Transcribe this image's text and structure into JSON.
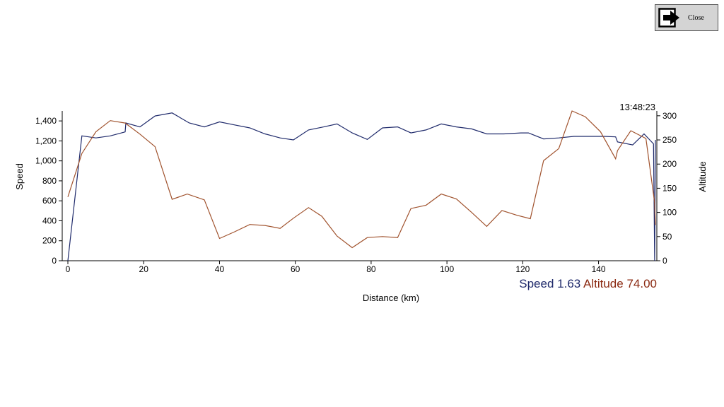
{
  "close_button": {
    "label": "Close",
    "icon": "exit-arrow-icon"
  },
  "timestamp": "13:48:23",
  "readout": {
    "speed_label": "Speed",
    "speed_value": "1.63",
    "speed_color": "#1f2a6b",
    "altitude_label": "Altitude",
    "altitude_value": "74.00",
    "altitude_color": "#8b2a12"
  },
  "chart_data": {
    "type": "line",
    "xlabel": "Distance (km)",
    "ylabel": "Speed",
    "y2label": "Altitude",
    "xlim": [
      0,
      155
    ],
    "ylim": [
      0,
      1500
    ],
    "y2lim": [
      0,
      310
    ],
    "x_ticks": [
      0,
      20,
      40,
      60,
      80,
      100,
      120,
      140
    ],
    "y_ticks": [
      0,
      200,
      400,
      600,
      800,
      1000,
      1200,
      1400
    ],
    "y_tick_labels": [
      "0",
      "200",
      "400",
      "600",
      "800",
      "1,000",
      "1,200",
      "1,400"
    ],
    "y2_ticks": [
      0,
      50,
      100,
      150,
      200,
      250,
      300
    ],
    "series": [
      {
        "name": "Speed",
        "axis": "left",
        "color": "#1f2a6b",
        "x": [
          0,
          3.7,
          7.4,
          11.2,
          15.1,
          15.3,
          19,
          23,
          27.5,
          32,
          36,
          40,
          44,
          48,
          52,
          56,
          59.5,
          63.5,
          67.5,
          71,
          75,
          79,
          83,
          87,
          90.5,
          94.5,
          98.5,
          102.5,
          106.5,
          110.5,
          115,
          119.5,
          121.5,
          125.5,
          129.5,
          133.5,
          137.5,
          141.5,
          144.5,
          145,
          149,
          152,
          154.5,
          154.8,
          155
        ],
        "y": [
          0,
          1250,
          1230,
          1250,
          1290,
          1380,
          1340,
          1450,
          1480,
          1380,
          1340,
          1390,
          1360,
          1330,
          1270,
          1230,
          1210,
          1310,
          1340,
          1370,
          1280,
          1215,
          1330,
          1340,
          1280,
          1310,
          1370,
          1340,
          1320,
          1270,
          1270,
          1280,
          1280,
          1220,
          1230,
          1245,
          1245,
          1245,
          1240,
          1190,
          1160,
          1270,
          1170,
          0,
          1210
        ]
      },
      {
        "name": "Altitude",
        "axis": "right",
        "color": "#a0522d",
        "x": [
          0,
          3.7,
          7.4,
          11.2,
          15.1,
          19,
          23,
          27.5,
          31.5,
          36,
          40,
          44,
          48,
          52,
          56,
          59.5,
          63.5,
          67,
          71,
          75,
          79,
          83,
          87,
          90.5,
          94.5,
          98.5,
          102.5,
          106.5,
          110.5,
          114.5,
          118.5,
          122,
          125.5,
          129.5,
          133,
          136.5,
          140.5,
          144.5,
          145,
          148.5,
          152.5,
          154.8,
          155
        ],
        "y": [
          132,
          222,
          267,
          290,
          285,
          262,
          236,
          127,
          138,
          126,
          46,
          60,
          75,
          73,
          67,
          88,
          110,
          92,
          51,
          27,
          48,
          50,
          48,
          108,
          115,
          138,
          128,
          100,
          71,
          104,
          94,
          87,
          207,
          232,
          310,
          298,
          267,
          211,
          228,
          269,
          253,
          120,
          74
        ]
      }
    ]
  }
}
